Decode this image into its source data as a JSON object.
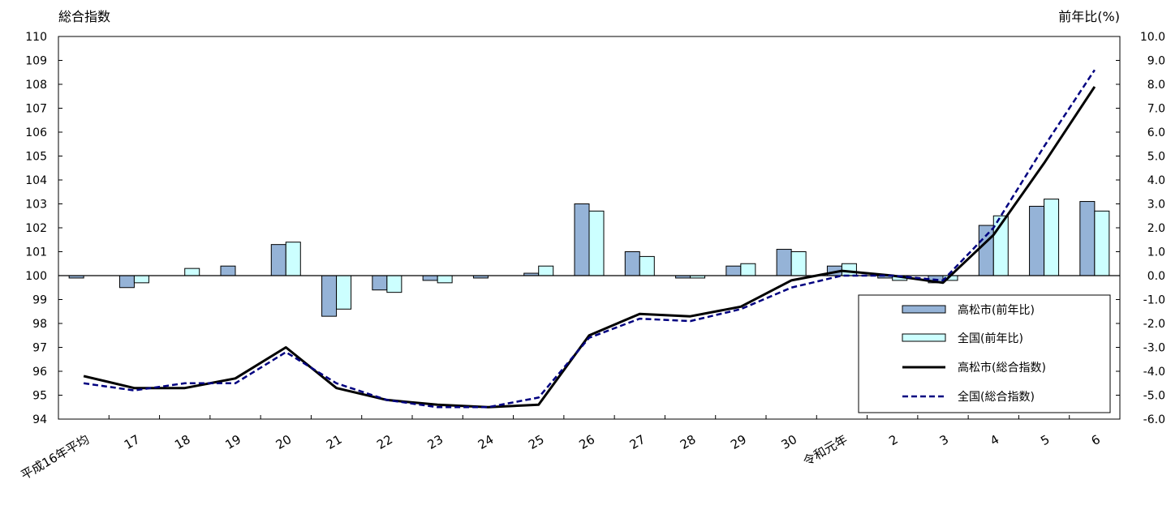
{
  "chart_data": {
    "type": "bar+line",
    "title": "",
    "y_left_label": "総合指数",
    "y_right_label": "前年比(%)",
    "y_left_range": [
      94,
      110
    ],
    "y_left_ticks": [
      "94",
      "95",
      "96",
      "97",
      "98",
      "99",
      "100",
      "101",
      "102",
      "103",
      "104",
      "105",
      "106",
      "107",
      "108",
      "109",
      "110"
    ],
    "y_right_range": [
      -6,
      10
    ],
    "y_right_ticks": [
      "-6.0",
      "-5.0",
      "-4.0",
      "-3.0",
      "-2.0",
      "-1.0",
      "0.0",
      "1.0",
      "2.0",
      "3.0",
      "4.0",
      "5.0",
      "6.0",
      "7.0",
      "8.0",
      "9.0",
      "10.0"
    ],
    "categories": [
      "平成16年平均",
      "17",
      "18",
      "19",
      "20",
      "21",
      "22",
      "23",
      "24",
      "25",
      "26",
      "27",
      "28",
      "29",
      "30",
      "令和元年",
      "2",
      "3",
      "4",
      "5",
      "6"
    ],
    "series": [
      {
        "name": "高松市(前年比)",
        "kind": "bar",
        "axis": "right",
        "color": "#95b3d7",
        "values": [
          -0.1,
          -0.5,
          0.0,
          0.4,
          1.3,
          -1.7,
          -0.6,
          -0.2,
          -0.1,
          0.1,
          3.0,
          1.0,
          -0.1,
          0.4,
          1.1,
          0.4,
          -0.1,
          -0.3,
          2.1,
          2.9,
          3.1
        ]
      },
      {
        "name": "全国(前年比)",
        "kind": "bar",
        "axis": "right",
        "color": "#ccffff",
        "values": [
          0.0,
          -0.3,
          0.3,
          0.0,
          1.4,
          -1.4,
          -0.7,
          -0.3,
          0.0,
          0.4,
          2.7,
          0.8,
          -0.1,
          0.5,
          1.0,
          0.5,
          -0.2,
          -0.2,
          2.5,
          3.2,
          2.7
        ]
      },
      {
        "name": "高松市(総合指数)",
        "kind": "line",
        "axis": "left",
        "color": "#000000",
        "dash": "solid",
        "values": [
          95.8,
          95.3,
          95.3,
          95.7,
          97.0,
          95.3,
          94.8,
          94.6,
          94.5,
          94.6,
          97.5,
          98.4,
          98.3,
          98.7,
          99.8,
          100.2,
          100.0,
          99.7,
          101.7,
          104.7,
          107.9
        ]
      },
      {
        "name": "全国(総合指数)",
        "kind": "line",
        "axis": "left",
        "color": "#000080",
        "dash": "dashed",
        "values": [
          95.5,
          95.2,
          95.5,
          95.5,
          96.8,
          95.5,
          94.8,
          94.5,
          94.5,
          94.9,
          97.4,
          98.2,
          98.1,
          98.6,
          99.5,
          100.0,
          100.0,
          99.8,
          102.0,
          105.4,
          108.6
        ]
      }
    ],
    "legend_position": "lower-right",
    "grid": false
  }
}
